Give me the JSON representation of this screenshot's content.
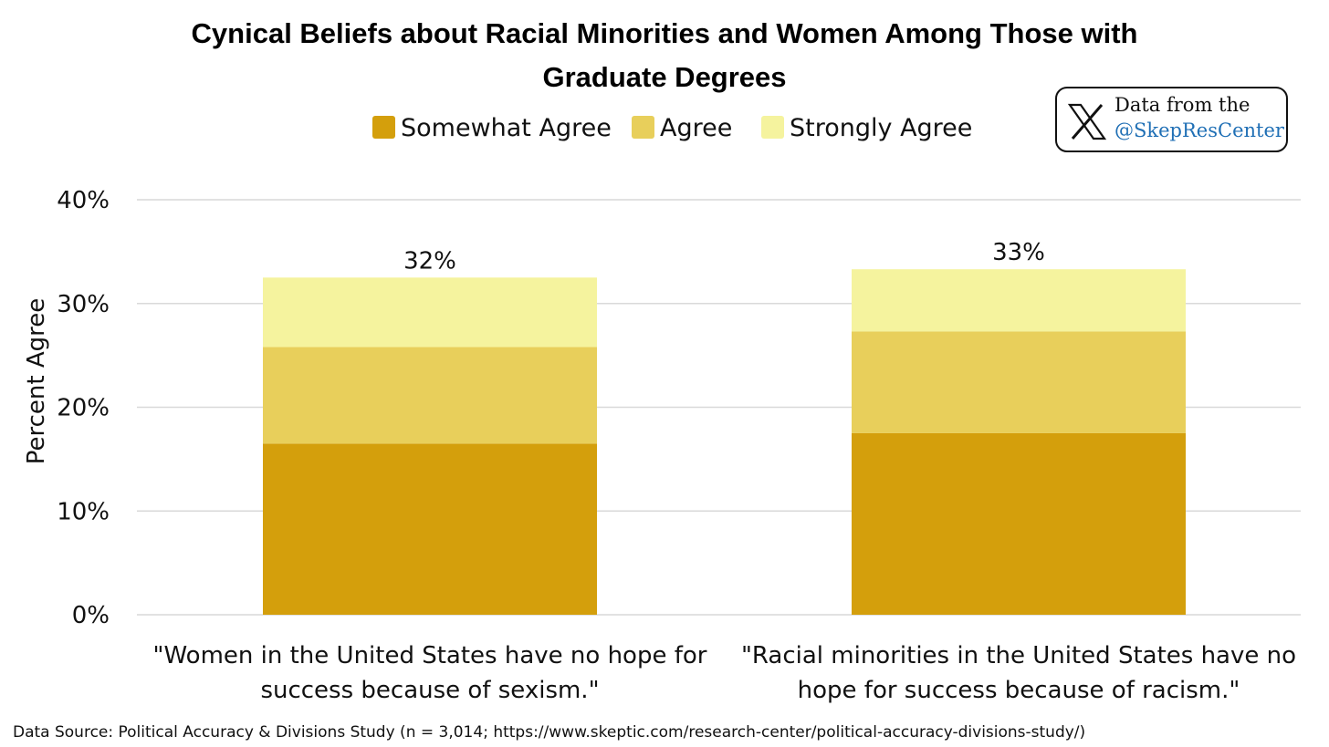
{
  "chart_data": {
    "type": "bar",
    "stacked": true,
    "title_lines": [
      "Cynical Beliefs about Racial Minorities and Women Among Those with",
      "Graduate Degrees"
    ],
    "ylabel": "Percent Agree",
    "ylim": [
      0,
      40
    ],
    "yticks": [
      0,
      10,
      20,
      30,
      40
    ],
    "ytick_labels": [
      "0%",
      "10%",
      "20%",
      "30%",
      "40%"
    ],
    "grid": true,
    "legend_position": "top-center",
    "categories": [
      [
        "\"Women in the United States have no hope for",
        "success because of sexism.\""
      ],
      [
        "\"Racial minorities in the United States have no",
        "hope for success because of racism.\""
      ]
    ],
    "series": [
      {
        "name": "Somewhat Agree",
        "color": "#D49F0C",
        "values": [
          16.5,
          17.5
        ]
      },
      {
        "name": "Agree",
        "color": "#E8CF5B",
        "values": [
          9.3,
          9.8
        ]
      },
      {
        "name": "Strongly Agree",
        "color": "#F5F39E",
        "values": [
          6.7,
          6.0
        ]
      }
    ],
    "totals": [
      "32%",
      "33%"
    ]
  },
  "badge": {
    "line1": "Data from the",
    "handle": "@SkepResCenter",
    "icon": "x-logo-icon"
  },
  "source": "Data Source: Political Accuracy & Divisions Study (n = 3,014; https://www.skeptic.com/research-center/political-accuracy-divisions-study/)"
}
